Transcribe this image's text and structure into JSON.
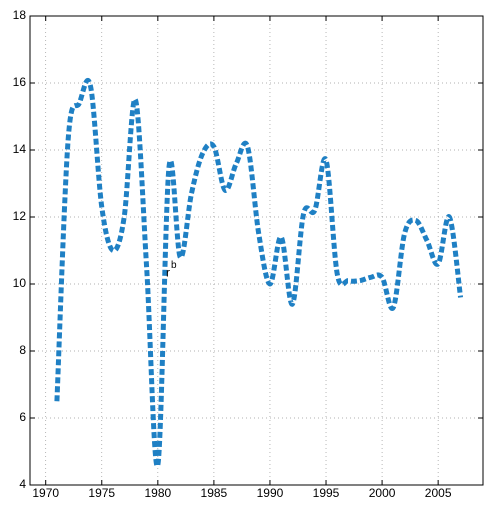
{
  "chart_data": {
    "type": "line",
    "x": [
      1971,
      1972,
      1973,
      1974,
      1975,
      1976,
      1977,
      1978,
      1979,
      1980,
      1981,
      1982,
      1983,
      1984,
      1985,
      1986,
      1987,
      1988,
      1989,
      1990,
      1991,
      1992,
      1993,
      1994,
      1995,
      1996,
      1997,
      1998,
      1999,
      2000,
      2001,
      2002,
      2003,
      2004,
      2005,
      2006,
      2007
    ],
    "series": [
      {
        "color": "#1f80c4",
        "values": [
          6.5,
          14.3,
          15.4,
          15.9,
          12.3,
          11.0,
          12.0,
          15.5,
          10.5,
          4.6,
          13.5,
          10.8,
          12.7,
          13.9,
          14.1,
          12.8,
          13.6,
          14.1,
          11.5,
          10.0,
          11.4,
          9.4,
          12.1,
          12.2,
          13.7,
          10.3,
          10.1,
          10.1,
          10.2,
          10.2,
          9.3,
          11.5,
          11.9,
          11.3,
          10.6,
          12.0,
          9.6
        ]
      }
    ],
    "xlim": [
      1968.6,
      2009
    ],
    "xticks": [
      1970,
      1975,
      1980,
      1985,
      1990,
      1995,
      2000,
      2005
    ],
    "ylim": [
      4,
      18
    ],
    "yticks": [
      4,
      6,
      8,
      10,
      12,
      14,
      16,
      18
    ],
    "grid": true,
    "annotations": [
      {
        "text": "r",
        "superscript": "b",
        "x": 1981,
        "y": 10.2
      }
    ]
  }
}
